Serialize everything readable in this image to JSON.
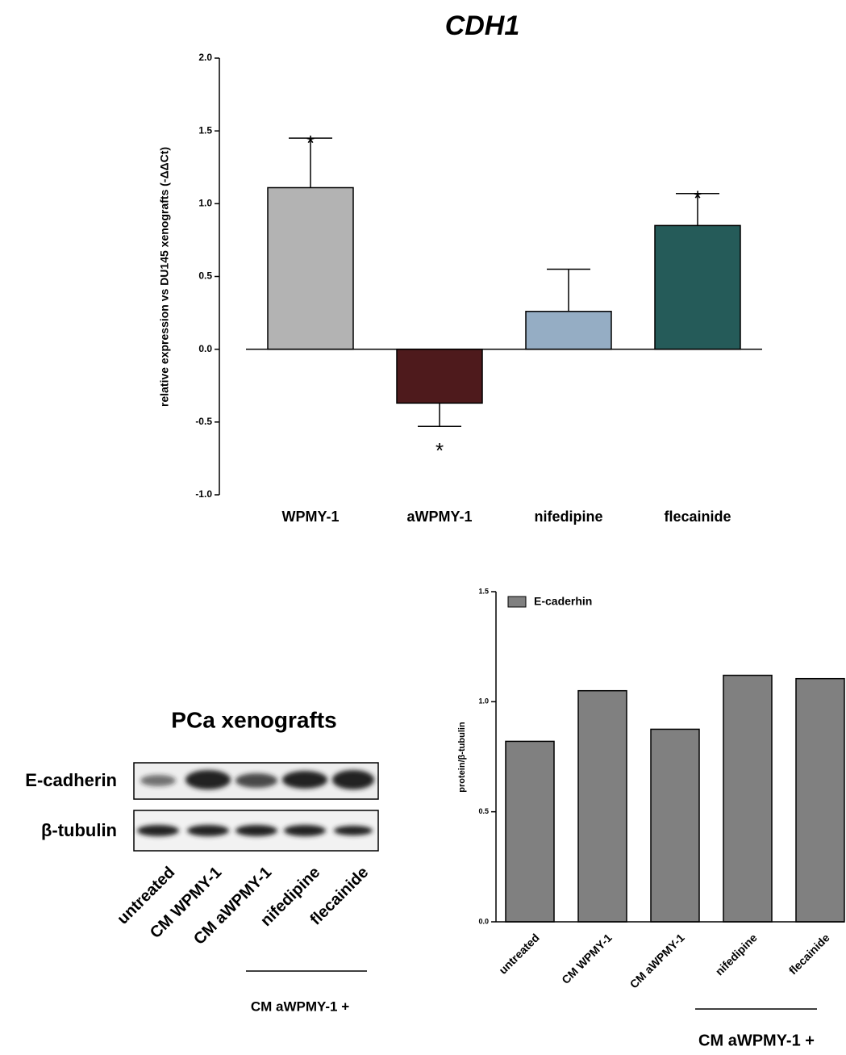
{
  "chart_data": [
    {
      "type": "bar",
      "title": "CDH1",
      "y_label": "relative expression vs DU145 xenografts (-ΔΔCt)",
      "categories": [
        "WPMY-1",
        "aWPMY-1",
        "nifedipine",
        "flecainide"
      ],
      "values": [
        1.11,
        -0.37,
        0.26,
        0.85
      ],
      "errors": [
        0.34,
        0.16,
        0.29,
        0.22
      ],
      "colors": [
        "#b3b3b3",
        "#4e1a1c",
        "#95adc4",
        "#255b59"
      ],
      "annotations": [
        "*",
        "*",
        null,
        "*"
      ],
      "ylim": [
        -1,
        2
      ],
      "yticks": [
        {
          "value": -1,
          "label": "-1.0"
        },
        {
          "value": -0.5,
          "label": "-0.5"
        },
        {
          "value": 0,
          "label": "0.0"
        },
        {
          "value": 0.5,
          "label": "0.5"
        },
        {
          "value": 1,
          "label": "1.0"
        },
        {
          "value": 1.5,
          "label": "1.5"
        },
        {
          "value": 2,
          "label": "2.0"
        }
      ]
    },
    {
      "type": "bar",
      "y_label": "protein/β-tubulin",
      "categories": [
        "untreated",
        "CM WPMY-1",
        "CM aWPMY-1",
        "nifedipine",
        "flecainide"
      ],
      "series": [
        {
          "name": "E-caderhin",
          "color": "#808080",
          "values": [
            0.82,
            1.05,
            0.875,
            1.12,
            1.105
          ]
        }
      ],
      "group_label": "CM aWPMY-1 +",
      "legend": "upper left",
      "ylim": [
        0,
        1.5
      ],
      "yticks": [
        {
          "value": 0,
          "label": "0.0"
        },
        {
          "value": 0.5,
          "label": "0.5"
        },
        {
          "value": 1,
          "label": "1.0"
        },
        {
          "value": 1.5,
          "label": "1.5"
        }
      ]
    }
  ],
  "blot": {
    "title": "PCa xenografts",
    "rows": [
      "E-cadherin",
      "β-tubulin"
    ],
    "lanes": [
      "untreated",
      "CM WPMY-1",
      "CM aWPMY-1",
      "nifedipine",
      "flecainide"
    ],
    "group_label": "CM aWPMY-1 +"
  }
}
